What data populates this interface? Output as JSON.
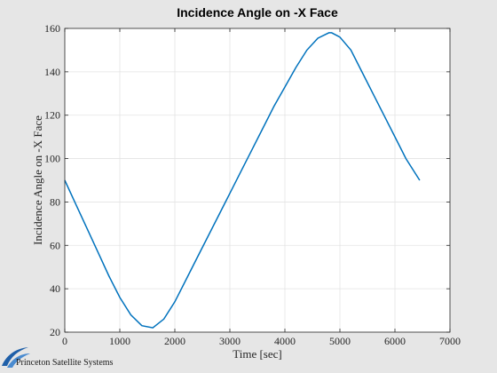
{
  "chart_data": {
    "type": "line",
    "title": "Incidence Angle on -X Face",
    "xlabel": "Time [sec]",
    "ylabel": "Incidence Angle on -X Face",
    "xlim": [
      0,
      7000
    ],
    "ylim": [
      20,
      160
    ],
    "xticks": [
      0,
      1000,
      2000,
      3000,
      4000,
      5000,
      6000,
      7000
    ],
    "yticks": [
      20,
      40,
      60,
      80,
      100,
      120,
      140,
      160
    ],
    "grid": true,
    "series": [
      {
        "color": "#0072bd",
        "x": [
          0,
          200,
          400,
          600,
          800,
          1000,
          1200,
          1400,
          1600,
          1800,
          2000,
          2200,
          2400,
          2600,
          2800,
          3000,
          3200,
          3400,
          3600,
          3800,
          4000,
          4200,
          4400,
          4600,
          4800,
          4850,
          5000,
          5200,
          5400,
          5600,
          5800,
          6000,
          6200,
          6450
        ],
        "y": [
          90,
          79,
          68,
          57,
          46,
          36,
          28,
          23,
          22,
          26,
          34,
          44,
          54,
          64,
          74,
          84,
          94,
          104,
          114,
          124,
          133,
          142,
          150,
          155.5,
          158,
          158,
          156,
          150,
          140,
          130,
          120,
          110,
          100,
          90
        ]
      }
    ]
  },
  "branding": {
    "company": "Princeton Satellite Systems"
  }
}
